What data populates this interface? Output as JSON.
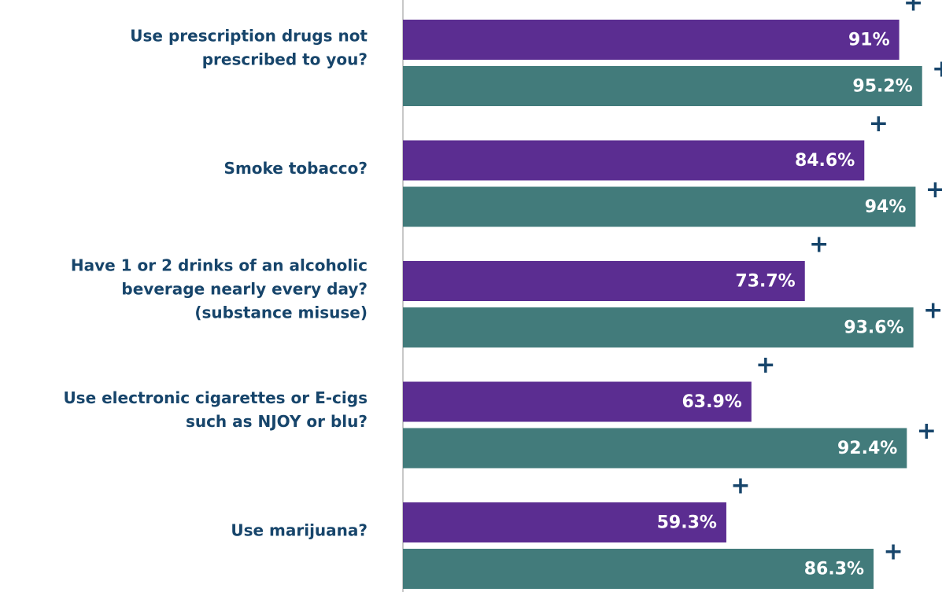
{
  "chart_data": {
    "type": "bar",
    "orientation": "horizontal",
    "categories": [
      [
        "Use prescription drugs not",
        "prescribed to you?"
      ],
      [
        "Smoke tobacco?"
      ],
      [
        "Have 1 or 2 drinks of an alcoholic",
        "beverage nearly every day?",
        "(substance misuse)"
      ],
      [
        "Use electronic cigarettes or E-cigs",
        "such as NJOY or blu?"
      ],
      [
        "Use marijuana?"
      ]
    ],
    "series": [
      {
        "color": "#5b2d91",
        "marker": "+",
        "values": [
          91,
          84.6,
          73.7,
          63.9,
          59.3
        ],
        "value_labels": [
          "91%",
          "84.6%",
          "73.7%",
          "63.9%",
          "59.3%"
        ]
      },
      {
        "color": "#427b7b",
        "marker": "+",
        "values": [
          95.2,
          94,
          93.6,
          92.4,
          86.3
        ],
        "value_labels": [
          "95.2%",
          "94%",
          "93.6%",
          "92.4%",
          "86.3%"
        ]
      }
    ],
    "xlim": [
      0,
      100
    ]
  }
}
